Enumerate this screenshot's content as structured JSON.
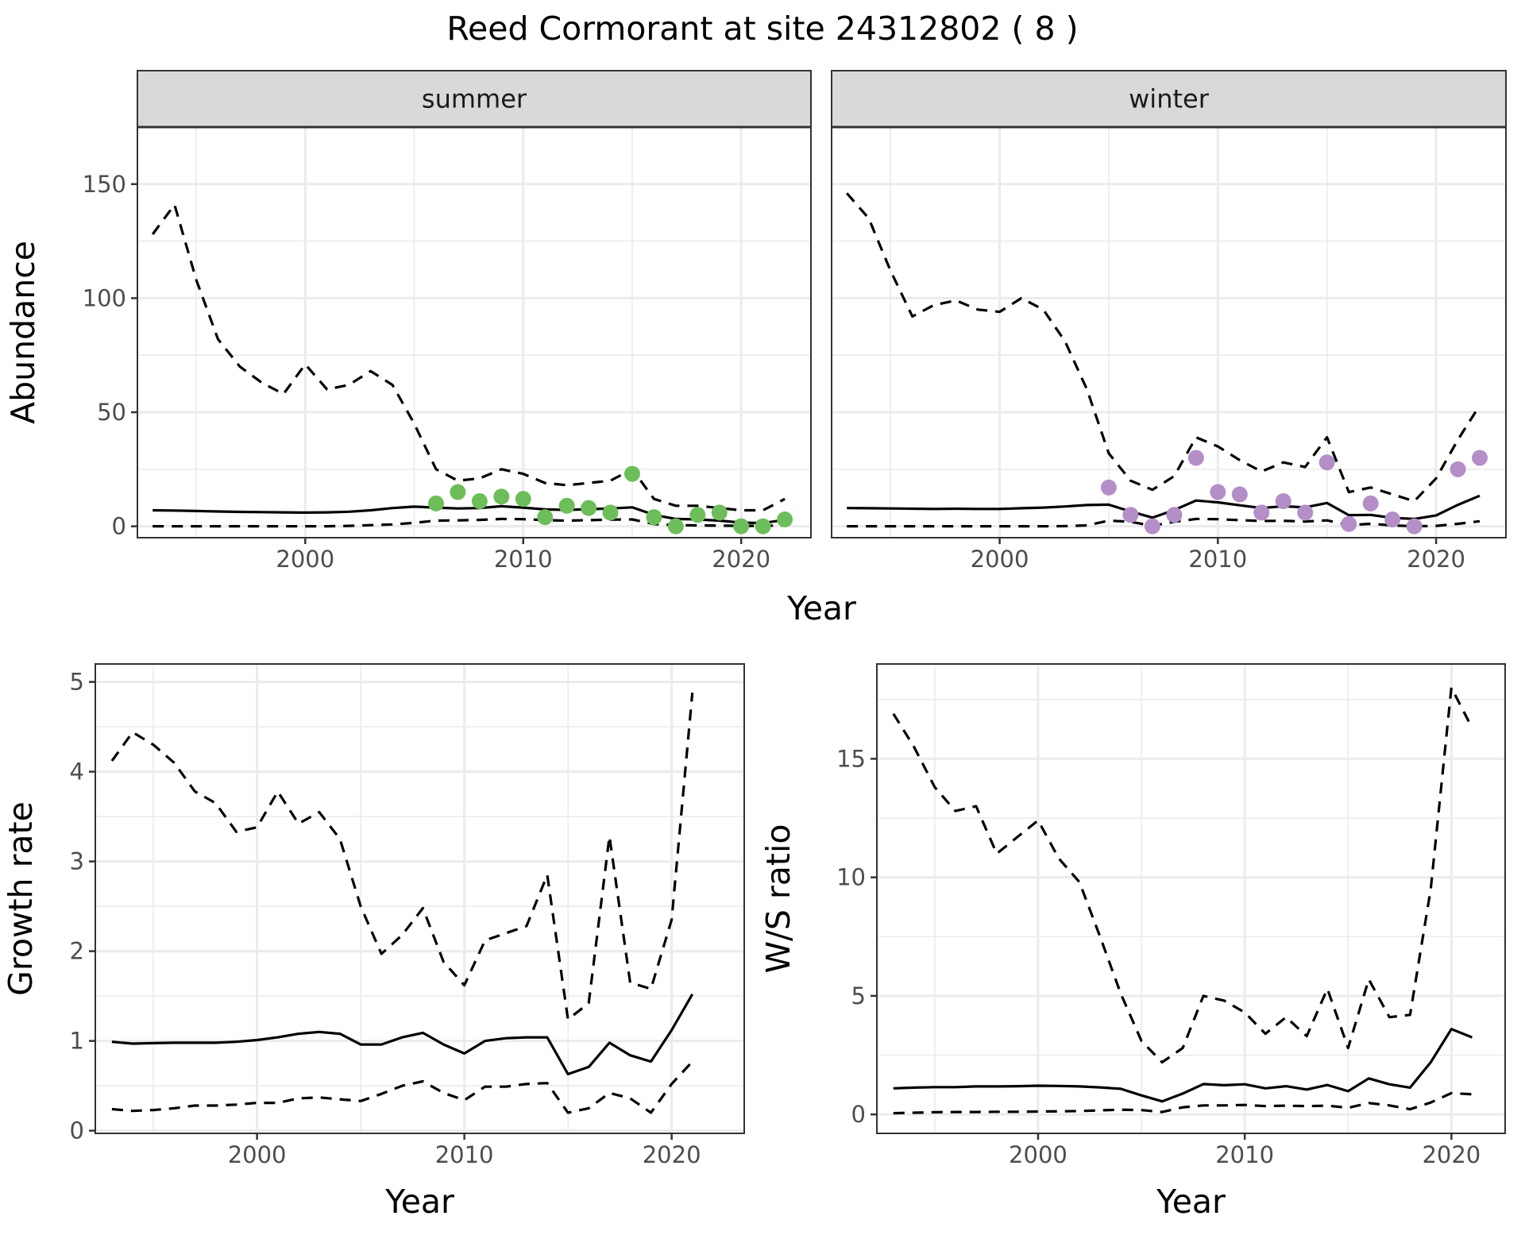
{
  "title": "Reed Cormorant at site 24312802 ( 8 )",
  "colors": {
    "summer_points": "#6dbe5a",
    "winter_points": "#b48ec7",
    "lines": "#000000",
    "strip_bg": "#d9d9d9",
    "grid": "#ebebeb"
  },
  "chart_data": [
    {
      "type": "line",
      "panel": "summer",
      "strip_label": "summer",
      "xlabel": "Year",
      "ylabel": "Abundance",
      "xlim": [
        1992.3,
        2023.2
      ],
      "ylim": [
        -5,
        175
      ],
      "xticks": [
        2000,
        2010,
        2020
      ],
      "yticks": [
        0,
        50,
        100,
        150
      ],
      "grid": true,
      "series": [
        {
          "name": "upper",
          "style": "dashed",
          "x": [
            1993,
            1994,
            1995,
            1996,
            1997,
            1998,
            1999,
            2000,
            2001,
            2002,
            2003,
            2004,
            2005,
            2006,
            2007,
            2008,
            2009,
            2010,
            2011,
            2012,
            2013,
            2014,
            2015,
            2016,
            2017,
            2018,
            2019,
            2020,
            2021,
            2022
          ],
          "y": [
            128,
            141,
            108,
            82,
            70,
            63,
            58,
            71,
            60,
            62,
            68,
            62,
            45,
            25,
            20,
            21,
            25,
            23,
            19,
            18,
            19,
            20,
            25,
            12,
            9,
            9,
            8,
            7,
            7,
            12
          ]
        },
        {
          "name": "mean",
          "style": "solid",
          "x": [
            1993,
            1994,
            1995,
            1996,
            1997,
            1998,
            1999,
            2000,
            2001,
            2002,
            2003,
            2004,
            2005,
            2006,
            2007,
            2008,
            2009,
            2010,
            2011,
            2012,
            2013,
            2014,
            2015,
            2016,
            2017,
            2018,
            2019,
            2020,
            2021,
            2022
          ],
          "y": [
            7,
            6.9,
            6.7,
            6.5,
            6.3,
            6.2,
            6.1,
            6,
            6.1,
            6.4,
            7,
            8,
            8.6,
            8.2,
            7.8,
            8,
            8.8,
            8.2,
            7.4,
            7.2,
            7.5,
            7.8,
            8.3,
            5,
            3.2,
            3,
            2.5,
            1.6,
            1.4,
            2.8
          ]
        },
        {
          "name": "lower",
          "style": "dashed",
          "x": [
            1993,
            1994,
            1995,
            1996,
            1997,
            1998,
            1999,
            2000,
            2001,
            2002,
            2003,
            2004,
            2005,
            2006,
            2007,
            2008,
            2009,
            2010,
            2011,
            2012,
            2013,
            2014,
            2015,
            2016,
            2017,
            2018,
            2019,
            2020,
            2021,
            2022
          ],
          "y": [
            0,
            0,
            0,
            0,
            0,
            0,
            0,
            0,
            0,
            0.2,
            0.5,
            0.8,
            1.5,
            2.5,
            2.6,
            2.8,
            3.2,
            3.1,
            2.7,
            2.5,
            2.7,
            2.9,
            3,
            1,
            0.5,
            0.4,
            0.3,
            0.2,
            0.2,
            0.4
          ]
        },
        {
          "name": "observed",
          "style": "points",
          "x": [
            2006,
            2007,
            2008,
            2009,
            2010,
            2011,
            2012,
            2013,
            2014,
            2015,
            2016,
            2017,
            2018,
            2019,
            2020,
            2021,
            2022
          ],
          "y": [
            10,
            15,
            11,
            13,
            12,
            4,
            9,
            8,
            6,
            23,
            4,
            0,
            5,
            6,
            0,
            0,
            3
          ]
        }
      ]
    },
    {
      "type": "line",
      "panel": "winter",
      "strip_label": "winter",
      "xlabel": "Year",
      "ylabel": "Abundance",
      "xlim": [
        1992.3,
        2023.2
      ],
      "ylim": [
        -5,
        175
      ],
      "xticks": [
        2000,
        2010,
        2020
      ],
      "yticks": [
        0,
        50,
        100,
        150
      ],
      "grid": true,
      "series": [
        {
          "name": "upper",
          "style": "dashed",
          "x": [
            1993,
            1994,
            1995,
            1996,
            1997,
            1998,
            1999,
            2000,
            2001,
            2002,
            2003,
            2004,
            2005,
            2006,
            2007,
            2008,
            2009,
            2010,
            2011,
            2012,
            2013,
            2014,
            2015,
            2016,
            2017,
            2018,
            2019,
            2020,
            2021,
            2022
          ],
          "y": [
            146,
            135,
            112,
            92,
            97,
            99,
            95,
            94,
            100,
            95,
            81,
            60,
            32,
            20,
            16,
            22,
            39,
            35,
            29,
            24,
            28,
            26,
            39,
            15,
            17,
            14,
            11,
            21,
            38,
            53
          ]
        },
        {
          "name": "mean",
          "style": "solid",
          "x": [
            1993,
            1994,
            1995,
            1996,
            1997,
            1998,
            1999,
            2000,
            2001,
            2002,
            2003,
            2004,
            2005,
            2006,
            2007,
            2008,
            2009,
            2010,
            2011,
            2012,
            2013,
            2014,
            2015,
            2016,
            2017,
            2018,
            2019,
            2020,
            2021,
            2022
          ],
          "y": [
            8,
            7.9,
            7.8,
            7.7,
            7.6,
            7.7,
            7.6,
            7.6,
            7.9,
            8.2,
            8.7,
            9.3,
            9.5,
            6.5,
            3.8,
            7.1,
            11.3,
            10.5,
            9.2,
            8,
            8.8,
            8.3,
            10.2,
            4.9,
            5,
            3.7,
            3.2,
            4.8,
            9.4,
            13.4
          ]
        },
        {
          "name": "lower",
          "style": "dashed",
          "x": [
            1993,
            1994,
            1995,
            1996,
            1997,
            1998,
            1999,
            2000,
            2001,
            2002,
            2003,
            2004,
            2005,
            2006,
            2007,
            2008,
            2009,
            2010,
            2011,
            2012,
            2013,
            2014,
            2015,
            2016,
            2017,
            2018,
            2019,
            2020,
            2021,
            2022
          ],
          "y": [
            0,
            0,
            0,
            0,
            0,
            0,
            0,
            0,
            0,
            0,
            0.1,
            0.4,
            2.5,
            2,
            0.2,
            2,
            3.2,
            3.1,
            2.7,
            2.3,
            2.4,
            2.1,
            2.6,
            0.5,
            1.1,
            0.4,
            0,
            0.2,
            1.1,
            2.2
          ]
        },
        {
          "name": "observed",
          "style": "points",
          "x": [
            2005,
            2006,
            2007,
            2008,
            2009,
            2010,
            2011,
            2012,
            2013,
            2014,
            2015,
            2016,
            2017,
            2018,
            2019,
            2021,
            2022
          ],
          "y": [
            17,
            5,
            0,
            5,
            30,
            15,
            14,
            6,
            11,
            6,
            28,
            1,
            10,
            3,
            0,
            25,
            30
          ]
        }
      ]
    },
    {
      "type": "line",
      "panel": "growth",
      "xlabel": "Year",
      "ylabel": "Growth rate",
      "xlim": [
        1992.2,
        2023.5
      ],
      "ylim": [
        -0.03,
        5.2
      ],
      "xticks": [
        2000,
        2010,
        2020
      ],
      "yticks": [
        0,
        1,
        2,
        3,
        4,
        5
      ],
      "grid": true,
      "series": [
        {
          "name": "upper",
          "style": "dashed",
          "x": [
            1993,
            1994,
            1995,
            1996,
            1997,
            1998,
            1999,
            2000,
            2001,
            2002,
            2003,
            2004,
            2005,
            2006,
            2007,
            2008,
            2009,
            2010,
            2011,
            2012,
            2013,
            2014,
            2015,
            2016,
            2017,
            2018,
            2019,
            2020,
            2021
          ],
          "y": [
            4.12,
            4.44,
            4.3,
            4.1,
            3.78,
            3.65,
            3.33,
            3.38,
            3.78,
            3.42,
            3.55,
            3.25,
            2.5,
            1.97,
            2.18,
            2.48,
            1.88,
            1.62,
            2.12,
            2.2,
            2.28,
            2.85,
            1.24,
            1.42,
            3.28,
            1.65,
            1.58,
            2.35,
            4.88
          ]
        },
        {
          "name": "mean",
          "style": "solid",
          "x": [
            1993,
            1994,
            1995,
            1996,
            1997,
            1998,
            1999,
            2000,
            2001,
            2002,
            2003,
            2004,
            2005,
            2006,
            2007,
            2008,
            2009,
            2010,
            2011,
            2012,
            2013,
            2014,
            2015,
            2016,
            2017,
            2018,
            2019,
            2020,
            2021
          ],
          "y": [
            0.99,
            0.97,
            0.975,
            0.98,
            0.98,
            0.98,
            0.99,
            1.01,
            1.04,
            1.08,
            1.1,
            1.08,
            0.96,
            0.96,
            1.04,
            1.09,
            0.96,
            0.86,
            1,
            1.03,
            1.04,
            1.04,
            0.63,
            0.71,
            0.98,
            0.84,
            0.77,
            1.12,
            1.52
          ]
        },
        {
          "name": "lower",
          "style": "dashed",
          "x": [
            1993,
            1994,
            1995,
            1996,
            1997,
            1998,
            1999,
            2000,
            2001,
            2002,
            2003,
            2004,
            2005,
            2006,
            2007,
            2008,
            2009,
            2010,
            2011,
            2012,
            2013,
            2014,
            2015,
            2016,
            2017,
            2018,
            2019,
            2020,
            2021
          ],
          "y": [
            0.24,
            0.22,
            0.23,
            0.25,
            0.28,
            0.28,
            0.29,
            0.31,
            0.31,
            0.36,
            0.37,
            0.35,
            0.33,
            0.41,
            0.5,
            0.55,
            0.42,
            0.34,
            0.49,
            0.49,
            0.52,
            0.53,
            0.2,
            0.25,
            0.42,
            0.36,
            0.2,
            0.52,
            0.77
          ]
        }
      ]
    },
    {
      "type": "line",
      "panel": "ws_ratio",
      "xlabel": "Year",
      "ylabel": "W/S ratio",
      "xlim": [
        1992.2,
        2022.6
      ],
      "ylim": [
        -0.8,
        19.0
      ],
      "xticks": [
        2000,
        2010,
        2020
      ],
      "yticks": [
        0,
        5,
        10,
        15
      ],
      "grid": true,
      "series": [
        {
          "name": "upper",
          "style": "dashed",
          "x": [
            1993,
            1994,
            1995,
            1996,
            1997,
            1998,
            1999,
            2000,
            2001,
            2002,
            2003,
            2004,
            2005,
            2006,
            2007,
            2008,
            2009,
            2010,
            2011,
            2012,
            2013,
            2014,
            2015,
            2016,
            2017,
            2018,
            2019,
            2020,
            2021
          ],
          "y": [
            16.9,
            15.5,
            13.8,
            12.8,
            13,
            11,
            11.7,
            12.4,
            10.8,
            9.8,
            7.5,
            5.1,
            3.1,
            2.2,
            2.8,
            5,
            4.8,
            4.3,
            3.4,
            4.1,
            3.3,
            5.3,
            2.8,
            5.7,
            4.1,
            4.2,
            9.5,
            18,
            16.3
          ]
        },
        {
          "name": "mean",
          "style": "solid",
          "x": [
            1993,
            1994,
            1995,
            1996,
            1997,
            1998,
            1999,
            2000,
            2001,
            2002,
            2003,
            2004,
            2005,
            2006,
            2007,
            2008,
            2009,
            2010,
            2011,
            2012,
            2013,
            2014,
            2015,
            2016,
            2017,
            2018,
            2019,
            2020,
            2021
          ],
          "y": [
            1.1,
            1.13,
            1.15,
            1.15,
            1.18,
            1.18,
            1.19,
            1.21,
            1.2,
            1.18,
            1.14,
            1.08,
            0.8,
            0.55,
            0.88,
            1.28,
            1.23,
            1.27,
            1.1,
            1.19,
            1.05,
            1.24,
            0.98,
            1.52,
            1.27,
            1.13,
            2.2,
            3.6,
            3.25
          ]
        },
        {
          "name": "lower",
          "style": "dashed",
          "x": [
            1993,
            1994,
            1995,
            1996,
            1997,
            1998,
            1999,
            2000,
            2001,
            2002,
            2003,
            2004,
            2005,
            2006,
            2007,
            2008,
            2009,
            2010,
            2011,
            2012,
            2013,
            2014,
            2015,
            2016,
            2017,
            2018,
            2019,
            2020,
            2021
          ],
          "y": [
            0.05,
            0.07,
            0.09,
            0.1,
            0.1,
            0.11,
            0.11,
            0.12,
            0.13,
            0.14,
            0.17,
            0.2,
            0.18,
            0.1,
            0.3,
            0.38,
            0.38,
            0.4,
            0.35,
            0.37,
            0.35,
            0.37,
            0.28,
            0.48,
            0.38,
            0.22,
            0.5,
            0.9,
            0.85
          ]
        }
      ]
    }
  ]
}
